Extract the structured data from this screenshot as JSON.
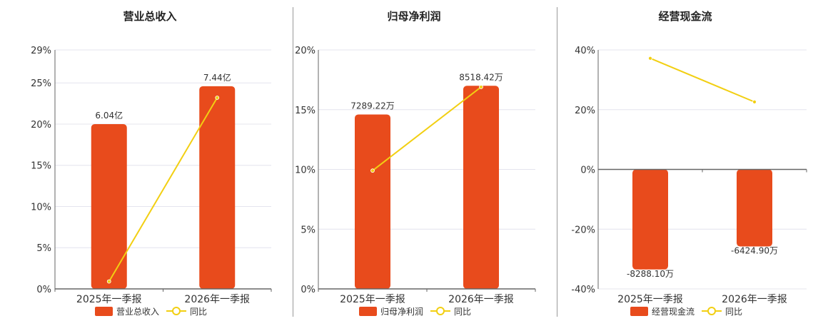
{
  "colors": {
    "bar": "#E84B1C",
    "line": "#F2CF12",
    "grid": "#E4E4EE",
    "axis": "#666666",
    "divider": "#999999"
  },
  "chart_data": [
    {
      "type": "bar",
      "title": "营业总收入",
      "categories": [
        "2025年一季报",
        "2026年一季报"
      ],
      "bar_series": {
        "name": "营业总收入",
        "data_labels": [
          "6.04亿",
          "7.44亿"
        ]
      },
      "line_series": {
        "name": "同比",
        "values": [
          0.9,
          23.2
        ]
      },
      "bar_axis_values": [
        20,
        24.6
      ],
      "ylim": [
        0,
        29
      ],
      "yticks": [
        0,
        5,
        10,
        15,
        20,
        25,
        29
      ],
      "ytick_labels": [
        "0%",
        "5%",
        "10%",
        "15%",
        "20%",
        "25%",
        "29%"
      ],
      "grid": true,
      "legend": "bottom"
    },
    {
      "type": "bar",
      "title": "归母净利润",
      "categories": [
        "2025年一季报",
        "2026年一季报"
      ],
      "bar_series": {
        "name": "归母净利润",
        "data_labels": [
          "7289.22万",
          "8518.42万"
        ]
      },
      "line_series": {
        "name": "同比",
        "values": [
          9.9,
          16.9
        ]
      },
      "bar_axis_values": [
        14.6,
        17.0
      ],
      "ylim": [
        0,
        20
      ],
      "yticks": [
        0,
        5,
        10,
        15,
        20
      ],
      "ytick_labels": [
        "0%",
        "5%",
        "10%",
        "15%",
        "20%"
      ],
      "grid": true,
      "legend": "bottom"
    },
    {
      "type": "bar",
      "title": "经营现金流",
      "categories": [
        "2025年一季报",
        "2026年一季报"
      ],
      "bar_series": {
        "name": "经营现金流",
        "data_labels": [
          "-8288.10万",
          "-6424.90万"
        ]
      },
      "line_series": {
        "name": "同比",
        "values": [
          37.2,
          22.6
        ]
      },
      "bar_axis_values": [
        -33.5,
        -25.8
      ],
      "ylim": [
        -40,
        40
      ],
      "yticks": [
        -40,
        -20,
        0,
        20,
        40
      ],
      "ytick_labels": [
        "-40%",
        "-20%",
        "0%",
        "20%",
        "40%"
      ],
      "grid": true,
      "legend": "bottom"
    }
  ]
}
